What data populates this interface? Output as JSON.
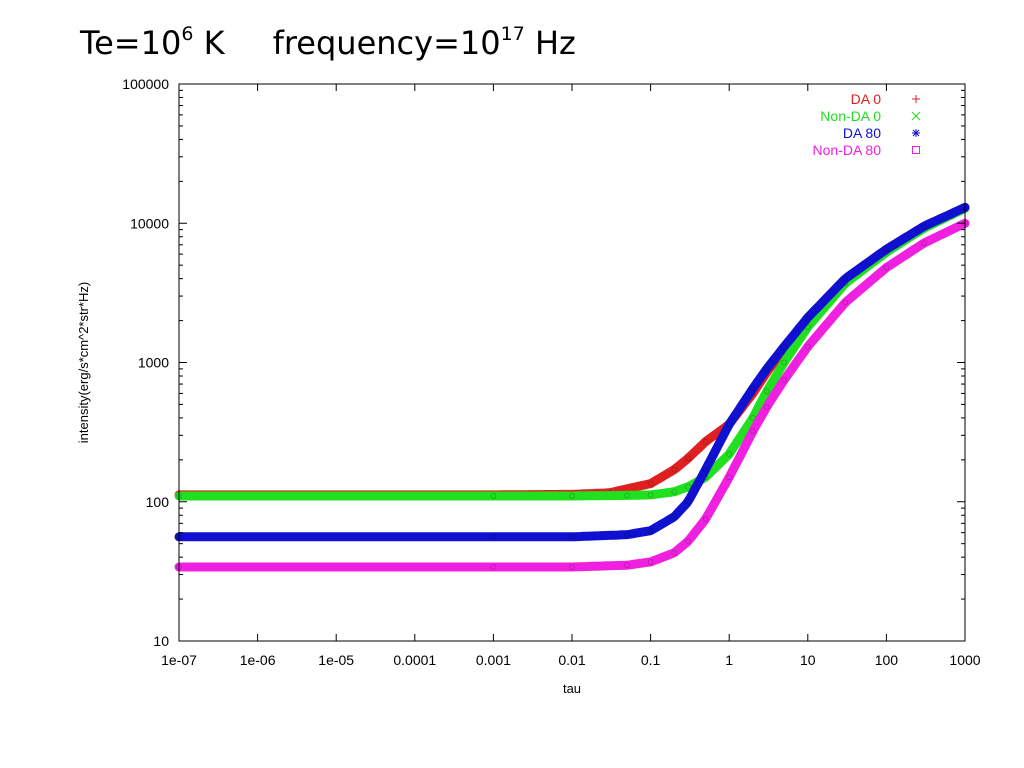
{
  "slide_title": {
    "te_prefix": "Te=10",
    "te_exponent": "6",
    "te_unit": " K",
    "freq_prefix": "frequency=10",
    "freq_exponent": "17",
    "freq_unit": " Hz"
  },
  "chart_data": {
    "type": "line",
    "title": "",
    "xlabel": "tau",
    "ylabel": "intensity(erg/s*cm^2*str*Hz)",
    "x_scale": "log",
    "y_scale": "log",
    "xlim": [
      1e-07,
      1000
    ],
    "ylim": [
      10,
      100000
    ],
    "x_tick_labels": [
      "1e-07",
      "1e-06",
      "1e-05",
      "0.0001",
      "0.001",
      "0.01",
      "0.1",
      "1",
      "10",
      "100",
      "1000"
    ],
    "y_tick_labels": [
      "10",
      "100",
      "1000",
      "10000",
      "100000"
    ],
    "grid": false,
    "legend_position": "top-right",
    "series": [
      {
        "name": "DA 0",
        "color": "#e02020",
        "marker": "plus",
        "x": [
          1e-07,
          0.001,
          0.01,
          0.03,
          0.1,
          0.2,
          0.3,
          0.5,
          1,
          2,
          3,
          5,
          10,
          30,
          100,
          300,
          1000
        ],
        "y": [
          112,
          112,
          113,
          116,
          135,
          170,
          205,
          270,
          360,
          600,
          850,
          1250,
          2100,
          4000,
          6500,
          9500,
          13000
        ]
      },
      {
        "name": "Non-DA 0",
        "color": "#20e020",
        "marker": "cross",
        "x": [
          1e-07,
          0.001,
          0.01,
          0.05,
          0.1,
          0.2,
          0.3,
          0.5,
          1,
          2,
          3,
          5,
          10,
          30,
          100,
          300,
          1000
        ],
        "y": [
          110,
          110,
          110,
          111,
          112,
          118,
          128,
          150,
          220,
          400,
          620,
          1000,
          1800,
          3700,
          6200,
          9200,
          12800
        ]
      },
      {
        "name": "DA 80",
        "color": "#1010d0",
        "marker": "star",
        "x": [
          1e-07,
          0.001,
          0.01,
          0.05,
          0.1,
          0.2,
          0.3,
          0.5,
          1,
          2,
          3,
          5,
          10,
          30,
          100,
          300,
          1000
        ],
        "y": [
          56,
          56,
          56,
          58,
          62,
          78,
          100,
          170,
          360,
          650,
          900,
          1300,
          2100,
          4000,
          6500,
          9500,
          13000
        ]
      },
      {
        "name": "Non-DA 80",
        "color": "#f020e0",
        "marker": "square",
        "x": [
          1e-07,
          0.001,
          0.01,
          0.05,
          0.1,
          0.2,
          0.3,
          0.5,
          1,
          2,
          3,
          5,
          10,
          30,
          100,
          300,
          1000
        ],
        "y": [
          34,
          34,
          34,
          35,
          37,
          43,
          52,
          75,
          150,
          320,
          480,
          750,
          1300,
          2700,
          4800,
          7200,
          10000
        ]
      }
    ]
  }
}
